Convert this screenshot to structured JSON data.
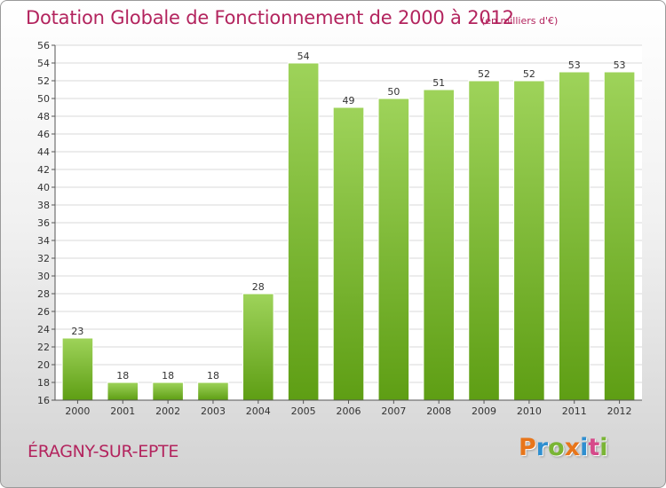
{
  "header": {
    "title": "Dotation Globale de Fonctionnement de 2000 à 2012",
    "subtitle": "(en milliers d'€)"
  },
  "footer": {
    "commune": "ÉRAGNY-SUR-EPTE",
    "logo_letters": [
      "P",
      "r",
      "o",
      "x",
      "i",
      "t",
      "i"
    ],
    "logo_colors": [
      "#e8751a",
      "#2f8fd0",
      "#7ab535",
      "#e8751a",
      "#2f8fd0",
      "#d64a8a",
      "#7ab535"
    ]
  },
  "chart_data": {
    "type": "bar",
    "categories": [
      "2000",
      "2001",
      "2002",
      "2003",
      "2004",
      "2005",
      "2006",
      "2007",
      "2008",
      "2009",
      "2010",
      "2011",
      "2012"
    ],
    "values": [
      23,
      18,
      18,
      18,
      28,
      54,
      49,
      50,
      51,
      52,
      52,
      53,
      53
    ],
    "title": "Dotation Globale de Fonctionnement de 2000 à 2012",
    "subtitle": "(en milliers d'€)",
    "ylim": [
      16,
      56
    ],
    "yticks": [
      16,
      18,
      20,
      22,
      24,
      26,
      28,
      30,
      32,
      34,
      36,
      38,
      40,
      42,
      44,
      46,
      48,
      50,
      52,
      54,
      56
    ],
    "grid": true,
    "bar_color_top": "#9ed35a",
    "bar_color_bottom": "#5e9e14",
    "grid_color": "#d8d8d8"
  }
}
